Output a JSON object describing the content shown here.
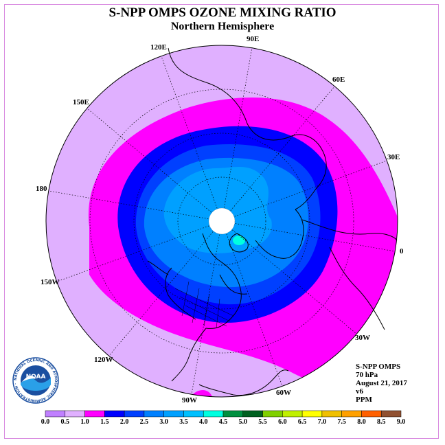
{
  "title": "S-NPP OMPS OZONE MIXING RATIO",
  "subtitle": "Northern Hemisphere",
  "longitude_labels": [
    "90E",
    "60E",
    "30E",
    "0",
    "30W",
    "60W",
    "90W",
    "120W",
    "150W",
    "180",
    "150E",
    "120E"
  ],
  "info": {
    "instrument": "S-NPP OMPS",
    "level": "70 hPa",
    "date": "August 21, 2017",
    "version": "v6",
    "units": "PPM"
  },
  "logo": {
    "text": "NOAA",
    "ring_text": "NATIONAL OCEANIC AND ATMOSPHERIC ADMINISTRATION · U.S. DEPARTMENT OF COMMERCE"
  },
  "colorbar": {
    "ticks": [
      "0.0",
      "0.5",
      "1.0",
      "1.5",
      "2.0",
      "2.5",
      "3.0",
      "3.5",
      "4.0",
      "4.5",
      "5.0",
      "5.5",
      "6.0",
      "6.5",
      "7.0",
      "7.5",
      "8.0",
      "8.5",
      "9.0"
    ],
    "colors": [
      "#c080ff",
      "#e0b0ff",
      "#ff00ff",
      "#0000ff",
      "#0040ff",
      "#0080ff",
      "#00a0ff",
      "#00c0ff",
      "#00ffe0",
      "#009040",
      "#006020",
      "#80d000",
      "#c0f000",
      "#ffff00",
      "#f0c000",
      "#ffa000",
      "#ff6000",
      "#ff0000",
      "#905030"
    ]
  },
  "colors": {
    "range_0_5_1_0": "#e0b0ff",
    "range_1_0_1_5": "#ff00ff",
    "range_1_5_2_0": "#0000ff",
    "range_2_0_2_5": "#0040ff",
    "range_2_5_3_0": "#0080ff",
    "range_3_0_3_5": "#00a0ff",
    "range_3_5_4_0": "#00ffe0",
    "pole_mask": "#ffffff"
  }
}
